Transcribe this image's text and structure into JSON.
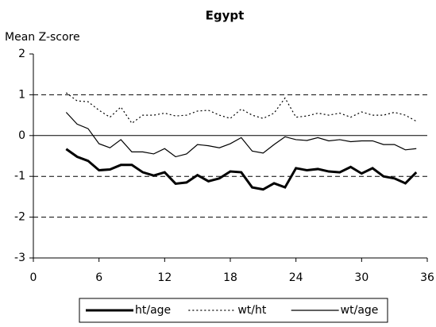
{
  "chart_data": {
    "type": "line",
    "title": "Egypt",
    "y_label": "Mean Z-score",
    "x": [
      3,
      4,
      5,
      6,
      7,
      8,
      9,
      10,
      11,
      12,
      13,
      14,
      15,
      16,
      17,
      18,
      19,
      20,
      21,
      22,
      23,
      24,
      25,
      26,
      27,
      28,
      29,
      30,
      31,
      32,
      33,
      34,
      35
    ],
    "series": [
      {
        "name": "ht/age",
        "color": "#000000",
        "style": "thick",
        "values": [
          -0.33,
          -0.52,
          -0.62,
          -0.85,
          -0.83,
          -0.72,
          -0.72,
          -0.9,
          -0.98,
          -0.9,
          -1.18,
          -1.15,
          -0.97,
          -1.12,
          -1.05,
          -0.88,
          -0.9,
          -1.27,
          -1.32,
          -1.17,
          -1.27,
          -0.8,
          -0.85,
          -0.82,
          -0.88,
          -0.9,
          -0.77,
          -0.93,
          -0.8,
          -1.0,
          -1.05,
          -1.17,
          -0.9
        ]
      },
      {
        "name": "wt/ht",
        "color": "#000000",
        "style": "dotted",
        "values": [
          1.05,
          0.85,
          0.83,
          0.62,
          0.45,
          0.7,
          0.3,
          0.5,
          0.5,
          0.55,
          0.48,
          0.5,
          0.6,
          0.62,
          0.5,
          0.42,
          0.65,
          0.5,
          0.42,
          0.55,
          0.92,
          0.45,
          0.48,
          0.55,
          0.5,
          0.55,
          0.45,
          0.58,
          0.5,
          0.5,
          0.57,
          0.5,
          0.35
        ]
      },
      {
        "name": "wt/age",
        "color": "#000000",
        "style": "thin",
        "values": [
          0.57,
          0.28,
          0.17,
          -0.2,
          -0.3,
          -0.1,
          -0.4,
          -0.4,
          -0.45,
          -0.32,
          -0.52,
          -0.45,
          -0.22,
          -0.25,
          -0.3,
          -0.2,
          -0.05,
          -0.38,
          -0.43,
          -0.22,
          -0.03,
          -0.1,
          -0.12,
          -0.05,
          -0.13,
          -0.1,
          -0.15,
          -0.13,
          -0.13,
          -0.22,
          -0.22,
          -0.35,
          -0.32
        ]
      }
    ],
    "xlim": [
      0,
      36
    ],
    "xticks": [
      0,
      6,
      12,
      18,
      24,
      30,
      36
    ],
    "ylim": [
      -3,
      2
    ],
    "yticks": [
      2,
      1,
      0,
      -1,
      -2,
      -3
    ],
    "grid": true,
    "legend": "bottom"
  }
}
